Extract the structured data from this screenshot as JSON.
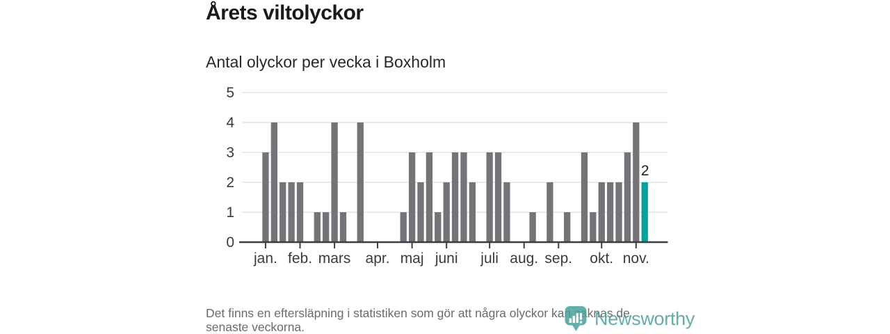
{
  "page": {
    "background": "#ffffff"
  },
  "header": {
    "title": "Årets viltolyckor",
    "subtitle": "Antal olyckor per vecka i Boxholm"
  },
  "footer": {
    "line1": "Det finns en eftersläpning i statistiken som gör att några olyckor kan saknas de",
    "line2": "senaste veckorna."
  },
  "branding": {
    "name": "Newsworthy",
    "icon": "newsworthy-pin-barchart-icon",
    "color": "#4aa19b"
  },
  "chart_data": {
    "type": "bar",
    "title": "Årets viltolyckor",
    "subtitle": "Antal olyckor per vecka i Boxholm",
    "x_unit": "vecka",
    "values": [
      3,
      4,
      2,
      2,
      2,
      0,
      1,
      1,
      4,
      1,
      0,
      4,
      0,
      0,
      0,
      0,
      1,
      3,
      2,
      3,
      1,
      2,
      3,
      3,
      2,
      0,
      3,
      3,
      2,
      0,
      0,
      1,
      0,
      2,
      0,
      1,
      0,
      3,
      1,
      2,
      2,
      2,
      3,
      4,
      2
    ],
    "highlight_index": 44,
    "highlight_value_label": "2",
    "y_ticks": [
      0,
      1,
      2,
      3,
      4,
      5
    ],
    "ylim": [
      0,
      5
    ],
    "month_ticks": [
      {
        "label": "jan.",
        "week_index": 0
      },
      {
        "label": "feb.",
        "week_index": 4
      },
      {
        "label": "mars",
        "week_index": 8
      },
      {
        "label": "apr.",
        "week_index": 13
      },
      {
        "label": "maj",
        "week_index": 17
      },
      {
        "label": "juni",
        "week_index": 21
      },
      {
        "label": "juli",
        "week_index": 26
      },
      {
        "label": "aug.",
        "week_index": 30
      },
      {
        "label": "sep.",
        "week_index": 34
      },
      {
        "label": "okt.",
        "week_index": 39
      },
      {
        "label": "nov.",
        "week_index": 43
      }
    ],
    "grid": true,
    "legend": false,
    "colors": {
      "bar": "#737378",
      "highlight": "#00a3a0",
      "grid": "#e4e4e4",
      "axis": "#3d3d3d",
      "tick_text": "#3a3a3a",
      "value_label": "#1f1f1f"
    }
  }
}
